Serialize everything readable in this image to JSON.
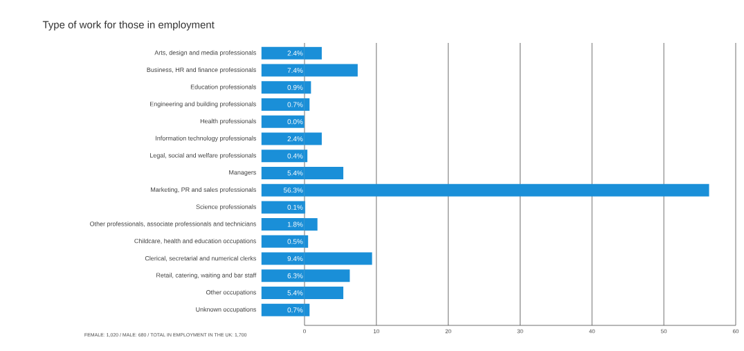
{
  "chart_data": {
    "type": "bar",
    "orientation": "horizontal",
    "title": "Type of work for those in employment",
    "categories": [
      "Arts, design and media professionals",
      "Business, HR and finance professionals",
      "Education professionals",
      "Engineering and building professionals",
      "Health professionals",
      "Information technology professionals",
      "Legal, social and welfare professionals",
      "Managers",
      "Marketing, PR and sales professionals",
      "Science professionals",
      "Other professionals, associate professionals and technicians",
      "Childcare, health and education occupations",
      "Clerical, secretarial and numerical clerks",
      "Retail, catering, waiting and bar staff",
      "Other occupations",
      "Unknown occupations"
    ],
    "values": [
      2.4,
      7.4,
      0.9,
      0.7,
      0.0,
      2.4,
      0.4,
      5.4,
      56.3,
      0.1,
      1.8,
      0.5,
      9.4,
      6.3,
      5.4,
      0.7
    ],
    "value_labels": [
      "2.4%",
      "7.4%",
      "0.9%",
      "0.7%",
      "0.0%",
      "2.4%",
      "0.4%",
      "5.4%",
      "56.3%",
      "0.1%",
      "1.8%",
      "0.5%",
      "9.4%",
      "6.3%",
      "5.4%",
      "0.7%"
    ],
    "color": "#1a8fd8",
    "xlim": [
      0,
      60
    ],
    "xticks": [
      0,
      10,
      20,
      30,
      40,
      50,
      60
    ],
    "grid": "x",
    "annotations": [
      "FEMALE: 1,020 / MALE: 680 / TOTAL IN EMPLOYMENT IN THE UK: 1,700"
    ]
  }
}
